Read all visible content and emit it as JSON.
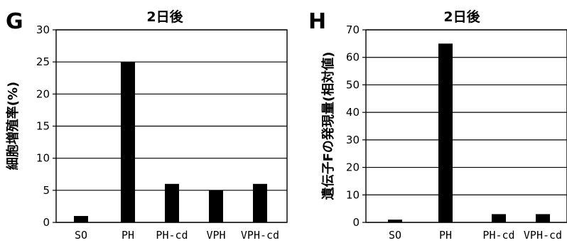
{
  "chart_data": [
    {
      "panel": "G",
      "type": "bar",
      "title": "2日後",
      "ylabel": "細胞増殖率(%)",
      "xlabel": "",
      "categories": [
        "SO",
        "PH",
        "PH-cd",
        "VPH",
        "VPH-cd"
      ],
      "values": [
        1,
        25,
        6,
        5,
        6
      ],
      "ylim": [
        0,
        30
      ],
      "yticks": [
        0,
        5,
        10,
        15,
        20,
        25,
        30
      ],
      "grid": true,
      "legend": "none",
      "bar_color": "#000000"
    },
    {
      "panel": "H",
      "type": "bar",
      "title": "2日後",
      "ylabel": "遺伝子Fの発現量(相対値)",
      "xlabel": "",
      "categories": [
        "SO",
        "PH",
        "PH-cd",
        "VPH-cd"
      ],
      "values": [
        1,
        65,
        3,
        3
      ],
      "ylim": [
        0,
        70
      ],
      "yticks": [
        0,
        10,
        20,
        30,
        40,
        50,
        60,
        70
      ],
      "grid": true,
      "legend": "none",
      "bar_color": "#000000"
    }
  ]
}
